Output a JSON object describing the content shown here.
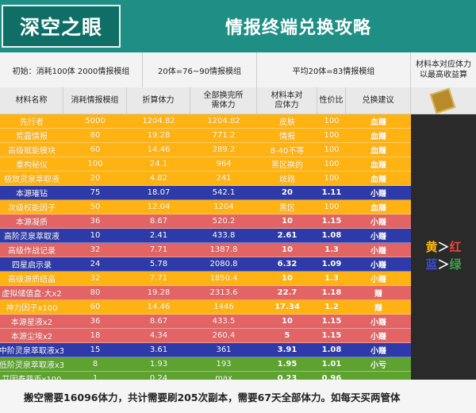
{
  "header": {
    "logo_text": "深空之眼",
    "title": "情报终端兑换攻略"
  },
  "info_bar": [
    {
      "text": "初始：消耗100体 2000情报模组"
    },
    {
      "text": "20体=76~90情报模组"
    },
    {
      "text": "平均20体=83情报模组"
    },
    {
      "text": "材料本对应体力以最高收益算"
    }
  ],
  "table": {
    "headers": [
      "材料名称",
      "消耗情报模组",
      "折算体力",
      "全部换完所需体力",
      "材料本对应体力",
      "性价比",
      "兑换建议"
    ],
    "rows": [
      {
        "name": "先行者",
        "cost": "5000",
        "stamina": "1204.82",
        "total": "1204.82",
        "material": "皮肤",
        "ratio": "100",
        "advice": "血赚",
        "bg": "#ffb312",
        "bold": false
      },
      {
        "name": "荒霾情报",
        "cost": "80",
        "stamina": "19.28",
        "total": "771.2",
        "material": "情报",
        "ratio": "100",
        "advice": "血赚",
        "bg": "#ffb312",
        "bold": false
      },
      {
        "name": "高级赋能模块",
        "cost": "60",
        "stamina": "14.46",
        "total": "289.2",
        "material": "8-40不等",
        "ratio": "100",
        "advice": "血赚",
        "bg": "#ffb312",
        "bold": false
      },
      {
        "name": "重构秘仪",
        "cost": "100",
        "stamina": "24.1",
        "total": "964",
        "material": "黑区换的",
        "ratio": "100",
        "advice": "血赚",
        "bg": "#ffb312",
        "bold": false
      },
      {
        "name": "极致灵泉萃取液",
        "cost": "20",
        "stamina": "4.82",
        "total": "241",
        "material": "歧路",
        "ratio": "100",
        "advice": "血赚",
        "bg": "#ffb312",
        "bold": false
      },
      {
        "name": "本源璀钻",
        "cost": "75",
        "stamina": "18.07",
        "total": "542.1",
        "material": "20",
        "ratio": "1.11",
        "advice": "小赚",
        "bg": "#2e3aa8",
        "bold": true
      },
      {
        "name": "次级权能因子",
        "cost": "50",
        "stamina": "12.04",
        "total": "1204",
        "material": "黑区",
        "ratio": "100",
        "advice": "血赚",
        "bg": "#ffb312",
        "bold": false
      },
      {
        "name": "本源凝质",
        "cost": "36",
        "stamina": "8.67",
        "total": "520.2",
        "material": "10",
        "ratio": "1.15",
        "advice": "小赚",
        "bg": "#e26464",
        "bold": true
      },
      {
        "name": "高阶灵泉萃取液",
        "cost": "10",
        "stamina": "2.41",
        "total": "433.8",
        "material": "2.61",
        "ratio": "1.08",
        "advice": "小赚",
        "bg": "#2e3aa8",
        "bold": true
      },
      {
        "name": "高级作战记录",
        "cost": "32",
        "stamina": "7.71",
        "total": "1387.8",
        "material": "10",
        "ratio": "1.3",
        "advice": "小赚",
        "bg": "#e26464",
        "bold": true
      },
      {
        "name": "四星启示录",
        "cost": "24",
        "stamina": "5.78",
        "total": "2080.8",
        "material": "6.32",
        "ratio": "1.09",
        "advice": "小赚",
        "bg": "#2e3aa8",
        "bold": true
      },
      {
        "name": "高级源质结晶",
        "cost": "32",
        "stamina": "7.71",
        "total": "1850.4",
        "material": "10",
        "ratio": "1.3",
        "advice": "小赚",
        "bg": "#ffb312",
        "bold": true
      },
      {
        "name": "虚拟储值盒·大x2",
        "cost": "80",
        "stamina": "19.28",
        "total": "2313.6",
        "material": "22.7",
        "ratio": "1.18",
        "advice": "赚",
        "bg": "#e26464",
        "bold": true
      },
      {
        "name": "神力因子x100",
        "cost": "60",
        "stamina": "14.46",
        "total": "1446",
        "material": "17.34",
        "ratio": "1.2",
        "advice": "赚",
        "bg": "#ffb312",
        "bold": true
      },
      {
        "name": "本源星液x2",
        "cost": "36",
        "stamina": "8.67",
        "total": "433.5",
        "material": "10",
        "ratio": "1.15",
        "advice": "小赚",
        "bg": "#e26464",
        "bold": true
      },
      {
        "name": "本源尘埃x2",
        "cost": "18",
        "stamina": "4.34",
        "total": "260.4",
        "material": "5",
        "ratio": "1.15",
        "advice": "小赚",
        "bg": "#e26464",
        "bold": true
      },
      {
        "name": "中阶灵泉萃取液x3",
        "cost": "15",
        "stamina": "3.61",
        "total": "361",
        "material": "3.91",
        "ratio": "1.08",
        "advice": "小赚",
        "bg": "#2e3aa8",
        "bold": true
      },
      {
        "name": "低阶灵泉萃取液x3",
        "cost": "8",
        "stamina": "1.93",
        "total": "193",
        "material": "1.95",
        "ratio": "1.01",
        "advice": "小亏",
        "bg": "#5ea330",
        "bold": true
      },
      {
        "name": "艾因泰菲币x100",
        "cost": "1",
        "stamina": "0.24",
        "total": "max",
        "material": "0.23",
        "ratio": "0.96",
        "advice": "",
        "bg": "#5ea330",
        "bold": true
      }
    ]
  },
  "sidebar": {
    "line1_a": "黄",
    "line1_arrow": "＞",
    "line1_b": "红",
    "line2_a": "蓝",
    "line2_arrow": "＞",
    "line2_b": "绿"
  },
  "footer": {
    "text": "搬空需要16096体力，共计需要刷205次副本，需要67天全部体力。如每天买两管体"
  }
}
